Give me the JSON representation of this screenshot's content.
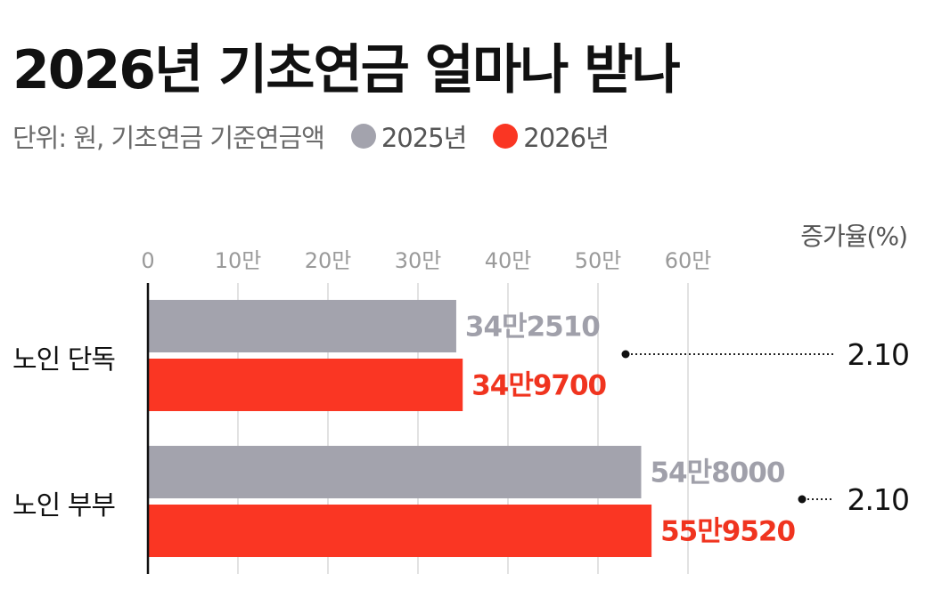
{
  "title": "2026년 기초연금 얼마나 받나",
  "subtitle": "단위: 원, 기초연금 기준연금액",
  "legend": [
    {
      "label": "2025년",
      "color": "#a3a3ad"
    },
    {
      "label": "2026년",
      "color": "#fa3623"
    }
  ],
  "chart_data": {
    "type": "bar",
    "orientation": "horizontal",
    "categories": [
      "노인 단독",
      "노인 부부"
    ],
    "series": [
      {
        "name": "2025년",
        "color": "#a3a3ad",
        "values": [
          342510,
          548000
        ],
        "labels": [
          "34만2510",
          "54만8000"
        ]
      },
      {
        "name": "2026년",
        "color": "#fa3623",
        "values": [
          349700,
          559520
        ],
        "labels": [
          "34만9700",
          "55만9520"
        ]
      }
    ],
    "x_ticks": [
      {
        "value": 0,
        "label": "0"
      },
      {
        "value": 100000,
        "label": "10만"
      },
      {
        "value": 200000,
        "label": "20만"
      },
      {
        "value": 300000,
        "label": "30만"
      },
      {
        "value": 400000,
        "label": "40만"
      },
      {
        "value": 500000,
        "label": "50만"
      },
      {
        "value": 600000,
        "label": "60만"
      }
    ],
    "xlim": [
      0,
      600000
    ],
    "grid": true,
    "increase_rate_header": "증가율(%)",
    "increase_rates": [
      "2.10",
      "2.10"
    ]
  }
}
